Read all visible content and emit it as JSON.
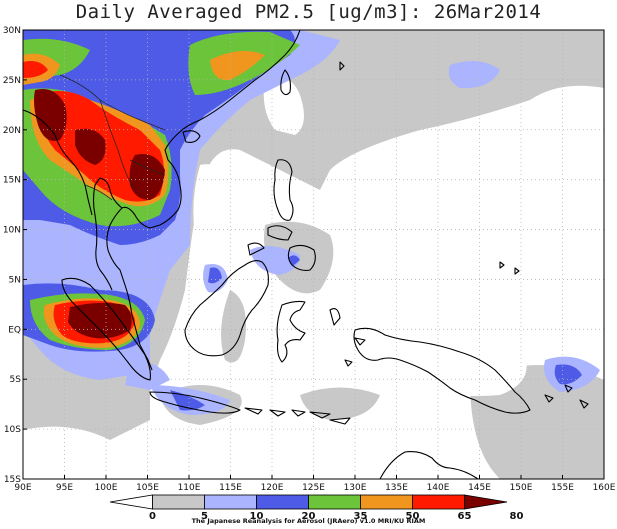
{
  "title": "Daily Averaged PM2.5 [ug/m3]: 26Mar2014",
  "map": {
    "lon_range": [
      90,
      160
    ],
    "lat_range": [
      -15,
      30
    ],
    "lon_labels": [
      "90E",
      "95E",
      "100E",
      "105E",
      "110E",
      "115E",
      "120E",
      "125E",
      "130E",
      "135E",
      "140E",
      "145E",
      "150E",
      "155E",
      "160E"
    ],
    "lat_labels": [
      "30N",
      "25N",
      "20N",
      "15N",
      "10N",
      "5N",
      "EQ",
      "5S",
      "10S",
      "15S"
    ]
  },
  "colorbar": {
    "levels": [
      "0",
      "5",
      "10",
      "20",
      "35",
      "50",
      "65",
      "80"
    ],
    "colors": [
      "#ffffff",
      "#c8c8c8",
      "#aab4ff",
      "#4e5be6",
      "#6cc43a",
      "#f0961e",
      "#ff1a00",
      "#7a0000"
    ]
  },
  "credit": "The Japanese Reanalysis for Aerosol (JRAero) v1.0 MRI/KU RIAM"
}
